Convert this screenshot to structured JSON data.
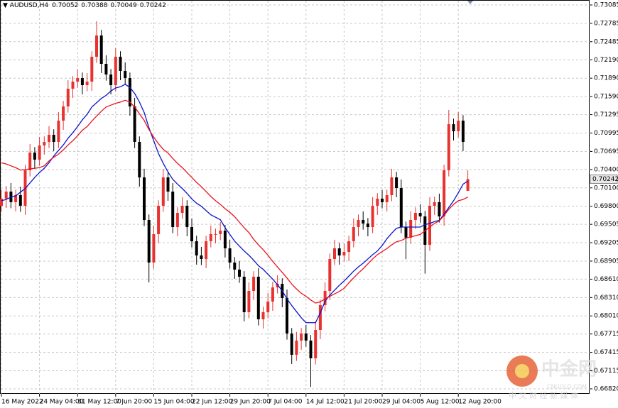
{
  "chart_data": {
    "type": "candlestick",
    "symbol": "AUDUSD,H4",
    "categories": [
      "16 May 2022",
      null,
      null,
      null,
      null,
      null,
      null,
      null,
      "24 May 04:00",
      null,
      null,
      null,
      null,
      null,
      null,
      null,
      "31 May 12:00",
      null,
      null,
      null,
      null,
      null,
      null,
      null,
      "7 Jun 20:00",
      null,
      null,
      null,
      null,
      null,
      null,
      null,
      "15 Jun 04:00",
      null,
      null,
      null,
      null,
      null,
      null,
      null,
      "22 Jun 12:00",
      null,
      null,
      null,
      null,
      null,
      null,
      null,
      "29 Jun 20:00",
      null,
      null,
      null,
      null,
      null,
      null,
      null,
      "7 Jul 04:00",
      null,
      null,
      null,
      null,
      null,
      null,
      null,
      "14 Jul 12:00",
      null,
      null,
      null,
      null,
      null,
      null,
      null,
      "21 Jul 20:00",
      null,
      null,
      null,
      null,
      null,
      null,
      null,
      "29 Jul 04:00",
      null,
      null,
      null,
      null,
      null,
      null,
      null,
      "5 Aug 12:00",
      null,
      null,
      null,
      null,
      null,
      null,
      null,
      "12 Aug 20:00",
      null,
      null
    ],
    "open": [
      0.69808,
      0.69924,
      0.70039,
      0.69866,
      0.69981,
      0.69808,
      0.70387,
      0.70676,
      0.7056,
      0.70792,
      0.7085,
      0.70966,
      0.7085,
      0.71197,
      0.71429,
      0.71718,
      0.71834,
      0.71892,
      0.71776,
      0.71834,
      0.7224,
      0.72587,
      0.72124,
      0.7195,
      0.71776,
      0.7224,
      0.72008,
      0.71892,
      0.71429,
      0.7085,
      0.70271,
      0.69576,
      0.68881,
      0.69345,
      0.69808,
      0.70271,
      0.70039,
      0.6946,
      0.69692,
      0.69808,
      0.6946,
      0.69229,
      0.68997,
      0.68939,
      0.69229,
      0.69345,
      0.69345,
      0.69402,
      0.69113,
      0.68881,
      0.68766,
      0.6865,
      0.68071,
      0.68418,
      0.6865,
      0.67955,
      0.68071,
      0.68244,
      0.68476,
      0.68534,
      0.68302,
      0.67723,
      0.67376,
      0.67608,
      0.67723,
      0.67608,
      0.67318,
      0.67781,
      0.68187,
      0.68418,
      0.68939,
      0.69113,
      0.68997,
      0.69055,
      0.69229,
      0.6946,
      0.69576,
      0.69518,
      0.6946,
      0.69808,
      0.69924,
      0.69866,
      0.69981,
      0.70271,
      0.70097,
      0.6946,
      0.69287,
      0.69576,
      0.69692,
      0.69634,
      0.69171,
      0.69808,
      0.69866,
      0.69634,
      0.70387,
      0.71139,
      0.71024,
      0.71197,
      0.70052
    ],
    "high": [
      0.70064,
      0.70129,
      0.70179,
      0.70071,
      0.70121,
      0.70477,
      0.70816,
      0.70766,
      0.70932,
      0.7094,
      0.71106,
      0.71056,
      0.71337,
      0.71519,
      0.71858,
      0.71924,
      0.72032,
      0.71982,
      0.71974,
      0.7233,
      0.72819,
      0.72677,
      0.72264,
      0.7204,
      0.7238,
      0.7233,
      0.72148,
      0.71982,
      0.71569,
      0.7094,
      0.70411,
      0.69666,
      0.69485,
      0.69898,
      0.70411,
      0.70361,
      0.70179,
      0.69782,
      0.69948,
      0.69898,
      0.696,
      0.69319,
      0.69137,
      0.69319,
      0.69485,
      0.69435,
      0.69542,
      0.69492,
      0.69253,
      0.68971,
      0.68906,
      0.6874,
      0.68558,
      0.6874,
      0.6879,
      0.68161,
      0.68384,
      0.68566,
      0.68674,
      0.68624,
      0.68442,
      0.67813,
      0.67748,
      0.67813,
      0.67863,
      0.67698,
      0.67921,
      0.68277,
      0.68558,
      0.69029,
      0.69253,
      0.69203,
      0.69195,
      0.69319,
      0.696,
      0.69666,
      0.69716,
      0.69608,
      0.69948,
      0.70014,
      0.70064,
      0.70071,
      0.70411,
      0.70361,
      0.70237,
      0.6955,
      0.69716,
      0.69782,
      0.69832,
      0.69724,
      0.69948,
      0.69956,
      0.70006,
      0.70477,
      0.71371,
      0.71229,
      0.71337,
      0.71287,
      0.70388
    ],
    "low": [
      0.69708,
      0.69774,
      0.69766,
      0.69716,
      0.69708,
      0.69658,
      0.70287,
      0.7041,
      0.7046,
      0.70642,
      0.7075,
      0.707,
      0.7075,
      0.71047,
      0.71329,
      0.71568,
      0.71734,
      0.71626,
      0.71676,
      0.71684,
      0.7214,
      0.71974,
      0.7185,
      0.71626,
      0.71676,
      0.71858,
      0.71792,
      0.71279,
      0.7075,
      0.70121,
      0.69476,
      0.68557,
      0.68781,
      0.69195,
      0.69708,
      0.69889,
      0.6936,
      0.6931,
      0.69592,
      0.6931,
      0.69129,
      0.68847,
      0.68839,
      0.68789,
      0.69129,
      0.69195,
      0.69245,
      0.68963,
      0.68781,
      0.68616,
      0.6855,
      0.67921,
      0.67971,
      0.68268,
      0.67855,
      0.67805,
      0.67971,
      0.68094,
      0.68376,
      0.68152,
      0.67623,
      0.67226,
      0.67276,
      0.67458,
      0.67508,
      0.6685,
      0.67218,
      0.67631,
      0.68087,
      0.68268,
      0.68839,
      0.68847,
      0.68897,
      0.68905,
      0.69129,
      0.6931,
      0.69418,
      0.6931,
      0.6936,
      0.69658,
      0.69766,
      0.69716,
      0.69881,
      0.69947,
      0.6936,
      0.68937,
      0.69187,
      0.69426,
      0.69534,
      0.687,
      0.69071,
      0.69658,
      0.69534,
      0.69484,
      0.70287,
      0.70874,
      0.70924,
      0.707,
      0.70049
    ],
    "close": [
      0.69924,
      0.70039,
      0.69866,
      0.69981,
      0.69808,
      0.70387,
      0.70676,
      0.7056,
      0.70792,
      0.7085,
      0.70966,
      0.7085,
      0.71197,
      0.71429,
      0.71718,
      0.71834,
      0.71892,
      0.71776,
      0.71834,
      0.7224,
      0.72587,
      0.72124,
      0.7195,
      0.71776,
      0.7224,
      0.72008,
      0.71892,
      0.71429,
      0.7085,
      0.70271,
      0.69576,
      0.68881,
      0.69345,
      0.69808,
      0.70271,
      0.70039,
      0.6946,
      0.69692,
      0.69808,
      0.6946,
      0.69229,
      0.68997,
      0.68939,
      0.69229,
      0.69345,
      0.69345,
      0.69402,
      0.69113,
      0.68881,
      0.68766,
      0.6865,
      0.68071,
      0.68418,
      0.6865,
      0.67955,
      0.68071,
      0.68244,
      0.68476,
      0.68534,
      0.68302,
      0.67723,
      0.67376,
      0.67608,
      0.67723,
      0.67608,
      0.67318,
      0.67781,
      0.68187,
      0.68418,
      0.68939,
      0.69113,
      0.68997,
      0.69055,
      0.69229,
      0.6946,
      0.69576,
      0.69518,
      0.6946,
      0.69808,
      0.69924,
      0.69866,
      0.69981,
      0.70271,
      0.70097,
      0.6946,
      0.69287,
      0.69576,
      0.69692,
      0.69634,
      0.69171,
      0.69808,
      0.69866,
      0.69634,
      0.70387,
      0.71139,
      0.71024,
      0.71197,
      0.7085,
      0.70242
    ],
    "up_color": "#e8322f",
    "down_color": "#000000",
    "lines": [
      {
        "color": "#0a14c8",
        "values": [
          0.6989,
          0.6991,
          0.6995,
          0.6997,
          0.7003,
          0.7009,
          0.7018,
          0.7027,
          0.7035,
          0.7042,
          0.7051,
          0.7062,
          0.7071,
          0.708,
          0.7091,
          0.71,
          0.711,
          0.7121,
          0.713,
          0.7142,
          0.7149,
          0.7156,
          0.7161,
          0.7168,
          0.7173,
          0.7175,
          0.7179,
          0.7174,
          0.7164,
          0.715,
          0.7133,
          0.7108,
          0.7087,
          0.7066,
          0.705,
          0.7036,
          0.7024,
          0.7016,
          0.7009,
          0.7001,
          0.6992,
          0.6985,
          0.698,
          0.6973,
          0.6966,
          0.6962,
          0.6958,
          0.6945,
          0.6934,
          0.6923,
          0.6915,
          0.6907,
          0.69,
          0.6892,
          0.6883,
          0.6877,
          0.6869,
          0.6861,
          0.6852,
          0.6842,
          0.6829,
          0.6818,
          0.6808,
          0.6798,
          0.679,
          0.679,
          0.679,
          0.6806,
          0.6825,
          0.6835,
          0.6843,
          0.6851,
          0.6858,
          0.6866,
          0.6874,
          0.6881,
          0.6887,
          0.6894,
          0.6901,
          0.6907,
          0.6916,
          0.6927,
          0.6936,
          0.6944,
          0.6946,
          0.6946,
          0.6946,
          0.6946,
          0.6946,
          0.695,
          0.6952,
          0.6955,
          0.6957,
          0.6967,
          0.6978,
          0.6989,
          0.7002,
          0.7016,
          0.7021
        ]
      },
      {
        "color": "#e8141e",
        "values": [
          0.7051,
          0.7049,
          0.7046,
          0.7043,
          0.7039,
          0.704,
          0.7041,
          0.7042,
          0.7043,
          0.7046,
          0.7054,
          0.706,
          0.7065,
          0.7072,
          0.708,
          0.7087,
          0.7095,
          0.7104,
          0.711,
          0.7119,
          0.7127,
          0.7135,
          0.7142,
          0.7145,
          0.7148,
          0.715,
          0.7153,
          0.715,
          0.7142,
          0.7131,
          0.712,
          0.7105,
          0.7093,
          0.7082,
          0.7073,
          0.7067,
          0.7058,
          0.705,
          0.7043,
          0.7035,
          0.7027,
          0.7019,
          0.7012,
          0.7004,
          0.6996,
          0.6989,
          0.6983,
          0.6976,
          0.697,
          0.6963,
          0.6954,
          0.6945,
          0.6937,
          0.6926,
          0.6917,
          0.6909,
          0.69,
          0.689,
          0.6881,
          0.6872,
          0.6863,
          0.6853,
          0.6845,
          0.6838,
          0.6833,
          0.6827,
          0.6822,
          0.6824,
          0.6829,
          0.6833,
          0.6837,
          0.6841,
          0.6846,
          0.6855,
          0.6863,
          0.6871,
          0.6878,
          0.6886,
          0.6894,
          0.6901,
          0.6906,
          0.6911,
          0.6917,
          0.6922,
          0.6924,
          0.6928,
          0.693,
          0.6932,
          0.6934,
          0.694,
          0.6946,
          0.6952,
          0.6956,
          0.6965,
          0.6975,
          0.6983,
          0.6989,
          0.6991,
          0.6995
        ]
      }
    ],
    "ylim": [
      0.66739,
      0.73166
    ],
    "yticks": [
      0.73085,
      0.72785,
      0.72485,
      {
        "value": 0.7219,
        "label": "0.72190"
      },
      {
        "value": 0.7189,
        "label": "0.71890"
      },
      {
        "value": 0.7159,
        "label": "0.71590"
      },
      0.71295,
      0.70995,
      0.70695,
      {
        "value": 0.704,
        "label": "0.70400"
      },
      {
        "value": 0.701,
        "label": "0.70100"
      },
      {
        "value": 0.698,
        "label": "0.69800"
      },
      0.69505,
      0.69205,
      0.68905,
      {
        "value": 0.6861,
        "label": "0.68610"
      },
      {
        "value": 0.6831,
        "label": "0.68310"
      },
      {
        "value": 0.6801,
        "label": "0.68010"
      },
      0.67715,
      0.67415,
      0.67115,
      {
        "value": 0.6682,
        "label": "0.66820"
      }
    ],
    "grid": true,
    "watermark": {
      "logo": "中金网",
      "site": "CNGOLD.COM",
      "slogan": "中 文 财 经 新 媒 体"
    }
  }
}
